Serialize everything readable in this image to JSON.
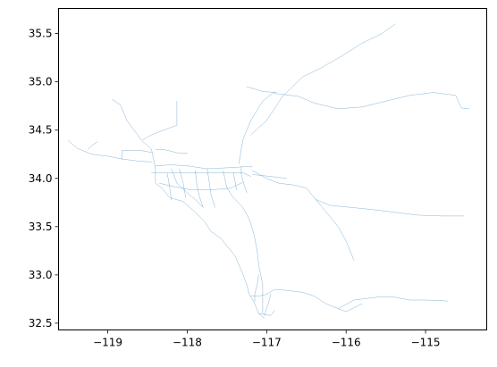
{
  "chart_data": {
    "type": "line",
    "title": "",
    "xlabel": "",
    "ylabel": "",
    "xlim": [
      -119.62,
      -114.23
    ],
    "ylim": [
      32.43,
      35.76
    ],
    "xticks": [
      -119,
      -118,
      -117,
      -116,
      -115
    ],
    "xtick_labels": [
      "−119",
      "−118",
      "−117",
      "−116",
      "−115"
    ],
    "yticks": [
      32.5,
      33.0,
      33.5,
      34.0,
      34.5,
      35.0,
      35.5
    ],
    "ytick_labels": [
      "32.5",
      "33.0",
      "33.5",
      "34.0",
      "34.5",
      "35.0",
      "35.5"
    ],
    "grid": false,
    "line_color": "#1f77b4",
    "series": [
      {
        "values": [
          [
            -119.5,
            34.39
          ],
          [
            -119.38,
            34.31
          ],
          [
            -119.2,
            34.25
          ],
          [
            -119.0,
            34.23
          ],
          [
            -118.82,
            34.2
          ],
          [
            -118.62,
            34.18
          ],
          [
            -118.45,
            34.17
          ]
        ]
      },
      {
        "values": [
          [
            -119.25,
            34.3
          ],
          [
            -119.2,
            34.34
          ],
          [
            -119.13,
            34.38
          ]
        ]
      },
      {
        "values": [
          [
            -118.82,
            34.2
          ],
          [
            -118.82,
            34.29
          ],
          [
            -118.6,
            34.29
          ],
          [
            -118.45,
            34.27
          ]
        ]
      },
      {
        "values": [
          [
            -118.95,
            34.82
          ],
          [
            -118.84,
            34.76
          ],
          [
            -118.76,
            34.6
          ],
          [
            -118.67,
            34.5
          ],
          [
            -118.57,
            34.39
          ],
          [
            -118.45,
            34.3
          ]
        ]
      },
      {
        "values": [
          [
            -118.56,
            34.4
          ],
          [
            -118.45,
            34.45
          ],
          [
            -118.3,
            34.5
          ],
          [
            -118.13,
            34.55
          ],
          [
            -118.13,
            34.8
          ]
        ]
      },
      {
        "values": [
          [
            -118.45,
            34.3
          ],
          [
            -118.4,
            34.1
          ],
          [
            -118.4,
            33.95
          ],
          [
            -118.32,
            33.9
          ],
          [
            -118.22,
            33.8
          ],
          [
            -118.05,
            33.76
          ],
          [
            -117.9,
            33.65
          ],
          [
            -117.78,
            33.55
          ],
          [
            -117.7,
            33.45
          ],
          [
            -117.58,
            33.38
          ],
          [
            -117.4,
            33.2
          ],
          [
            -117.32,
            33.05
          ],
          [
            -117.25,
            32.9
          ],
          [
            -117.22,
            32.8
          ],
          [
            -117.16,
            32.72
          ],
          [
            -117.1,
            32.6
          ],
          [
            -117.03,
            32.55
          ]
        ]
      },
      {
        "values": [
          [
            -118.45,
            34.06
          ],
          [
            -118.25,
            34.06
          ],
          [
            -118.0,
            34.06
          ],
          [
            -117.75,
            34.06
          ],
          [
            -117.5,
            34.06
          ],
          [
            -117.3,
            34.06
          ],
          [
            -117.2,
            34.02
          ]
        ]
      },
      {
        "values": [
          [
            -118.4,
            34.13
          ],
          [
            -118.2,
            34.14
          ],
          [
            -118.0,
            34.13
          ],
          [
            -117.75,
            34.1
          ],
          [
            -117.5,
            34.11
          ],
          [
            -117.3,
            34.12
          ],
          [
            -117.18,
            34.12
          ]
        ]
      },
      {
        "values": [
          [
            -118.2,
            34.1
          ],
          [
            -118.13,
            33.95
          ],
          [
            -118.0,
            33.85
          ],
          [
            -117.9,
            33.78
          ],
          [
            -117.8,
            33.7
          ]
        ]
      },
      {
        "values": [
          [
            -118.25,
            34.05
          ],
          [
            -118.22,
            33.9
          ],
          [
            -118.2,
            33.78
          ]
        ]
      },
      {
        "values": [
          [
            -118.1,
            34.1
          ],
          [
            -118.05,
            33.95
          ],
          [
            -118.02,
            33.8
          ]
        ]
      },
      {
        "values": [
          [
            -117.9,
            34.08
          ],
          [
            -117.88,
            33.95
          ],
          [
            -117.85,
            33.82
          ],
          [
            -117.8,
            33.7
          ]
        ]
      },
      {
        "values": [
          [
            -117.75,
            34.1
          ],
          [
            -117.72,
            33.95
          ],
          [
            -117.7,
            33.83
          ],
          [
            -117.65,
            33.7
          ]
        ]
      },
      {
        "values": [
          [
            -117.55,
            34.08
          ],
          [
            -117.5,
            33.9
          ],
          [
            -117.42,
            33.8
          ],
          [
            -117.3,
            33.7
          ],
          [
            -117.22,
            33.58
          ],
          [
            -117.16,
            33.42
          ],
          [
            -117.12,
            33.25
          ],
          [
            -117.1,
            33.1
          ],
          [
            -117.05,
            32.9
          ],
          [
            -117.05,
            32.75
          ],
          [
            -117.05,
            32.6
          ]
        ]
      },
      {
        "values": [
          [
            -118.35,
            33.95
          ],
          [
            -118.2,
            33.92
          ],
          [
            -117.95,
            33.88
          ],
          [
            -117.7,
            33.88
          ],
          [
            -117.45,
            33.9
          ],
          [
            -117.3,
            33.96
          ]
        ]
      },
      {
        "values": [
          [
            -117.32,
            34.12
          ],
          [
            -117.32,
            34.04
          ],
          [
            -117.28,
            33.92
          ],
          [
            -117.25,
            33.85
          ]
        ]
      },
      {
        "values": [
          [
            -117.42,
            34.06
          ],
          [
            -117.4,
            33.98
          ],
          [
            -117.38,
            33.88
          ]
        ]
      },
      {
        "values": [
          [
            -117.18,
            34.08
          ],
          [
            -117.0,
            34.0
          ],
          [
            -116.85,
            33.95
          ],
          [
            -116.65,
            33.93
          ],
          [
            -116.5,
            33.9
          ],
          [
            -116.38,
            33.78
          ],
          [
            -116.2,
            33.72
          ],
          [
            -115.95,
            33.7
          ],
          [
            -115.7,
            33.68
          ],
          [
            -115.4,
            33.65
          ],
          [
            -115.1,
            33.62
          ],
          [
            -114.8,
            33.61
          ],
          [
            -114.52,
            33.61
          ]
        ]
      },
      {
        "values": [
          [
            -117.18,
            34.04
          ],
          [
            -116.95,
            34.02
          ],
          [
            -116.75,
            34.0
          ]
        ]
      },
      {
        "values": [
          [
            -116.38,
            33.78
          ],
          [
            -116.2,
            33.6
          ],
          [
            -116.1,
            33.5
          ],
          [
            -116.0,
            33.35
          ],
          [
            -115.9,
            33.15
          ]
        ]
      },
      {
        "values": [
          [
            -118.4,
            34.3
          ],
          [
            -118.3,
            34.3
          ],
          [
            -118.2,
            34.28
          ],
          [
            -118.1,
            34.26
          ],
          [
            -118.0,
            34.26
          ]
        ]
      },
      {
        "values": [
          [
            -117.35,
            34.15
          ],
          [
            -117.3,
            34.4
          ],
          [
            -117.2,
            34.6
          ],
          [
            -117.05,
            34.8
          ],
          [
            -116.9,
            34.9
          ]
        ]
      },
      {
        "values": [
          [
            -117.2,
            34.45
          ],
          [
            -117.0,
            34.6
          ],
          [
            -116.8,
            34.85
          ],
          [
            -116.55,
            35.05
          ],
          [
            -116.3,
            35.15
          ],
          [
            -116.05,
            35.27
          ],
          [
            -115.8,
            35.4
          ],
          [
            -115.55,
            35.5
          ],
          [
            -115.38,
            35.6
          ]
        ]
      },
      {
        "values": [
          [
            -116.9,
            34.88
          ],
          [
            -116.6,
            34.85
          ],
          [
            -116.4,
            34.78
          ],
          [
            -116.1,
            34.72
          ],
          [
            -115.8,
            34.74
          ],
          [
            -115.5,
            34.8
          ],
          [
            -115.2,
            34.86
          ],
          [
            -114.9,
            34.89
          ],
          [
            -114.62,
            34.86
          ],
          [
            -114.55,
            34.73
          ],
          [
            -114.45,
            34.72
          ]
        ]
      },
      {
        "values": [
          [
            -117.25,
            34.95
          ],
          [
            -117.05,
            34.9
          ],
          [
            -116.88,
            34.89
          ]
        ]
      },
      {
        "values": [
          [
            -117.03,
            32.58
          ],
          [
            -116.98,
            32.7
          ],
          [
            -116.95,
            32.8
          ]
        ]
      },
      {
        "values": [
          [
            -117.15,
            32.72
          ],
          [
            -117.15,
            32.8
          ],
          [
            -117.12,
            32.9
          ],
          [
            -117.1,
            33.0
          ]
        ]
      },
      {
        "values": [
          [
            -117.2,
            32.78
          ],
          [
            -117.1,
            32.78
          ],
          [
            -117.0,
            32.8
          ],
          [
            -116.9,
            32.85
          ],
          [
            -116.75,
            32.84
          ],
          [
            -116.55,
            32.82
          ],
          [
            -116.4,
            32.78
          ],
          [
            -116.25,
            32.7
          ],
          [
            -116.1,
            32.65
          ],
          [
            -115.9,
            32.74
          ],
          [
            -115.6,
            32.77
          ],
          [
            -115.4,
            32.77
          ],
          [
            -115.2,
            32.74
          ],
          [
            -115.0,
            32.74
          ],
          [
            -114.72,
            32.73
          ]
        ]
      },
      {
        "values": [
          [
            -116.1,
            32.65
          ],
          [
            -116.0,
            32.62
          ],
          [
            -115.8,
            32.7
          ]
        ]
      },
      {
        "values": [
          [
            -117.1,
            32.6
          ],
          [
            -116.95,
            32.58
          ],
          [
            -116.9,
            32.63
          ]
        ]
      }
    ]
  }
}
